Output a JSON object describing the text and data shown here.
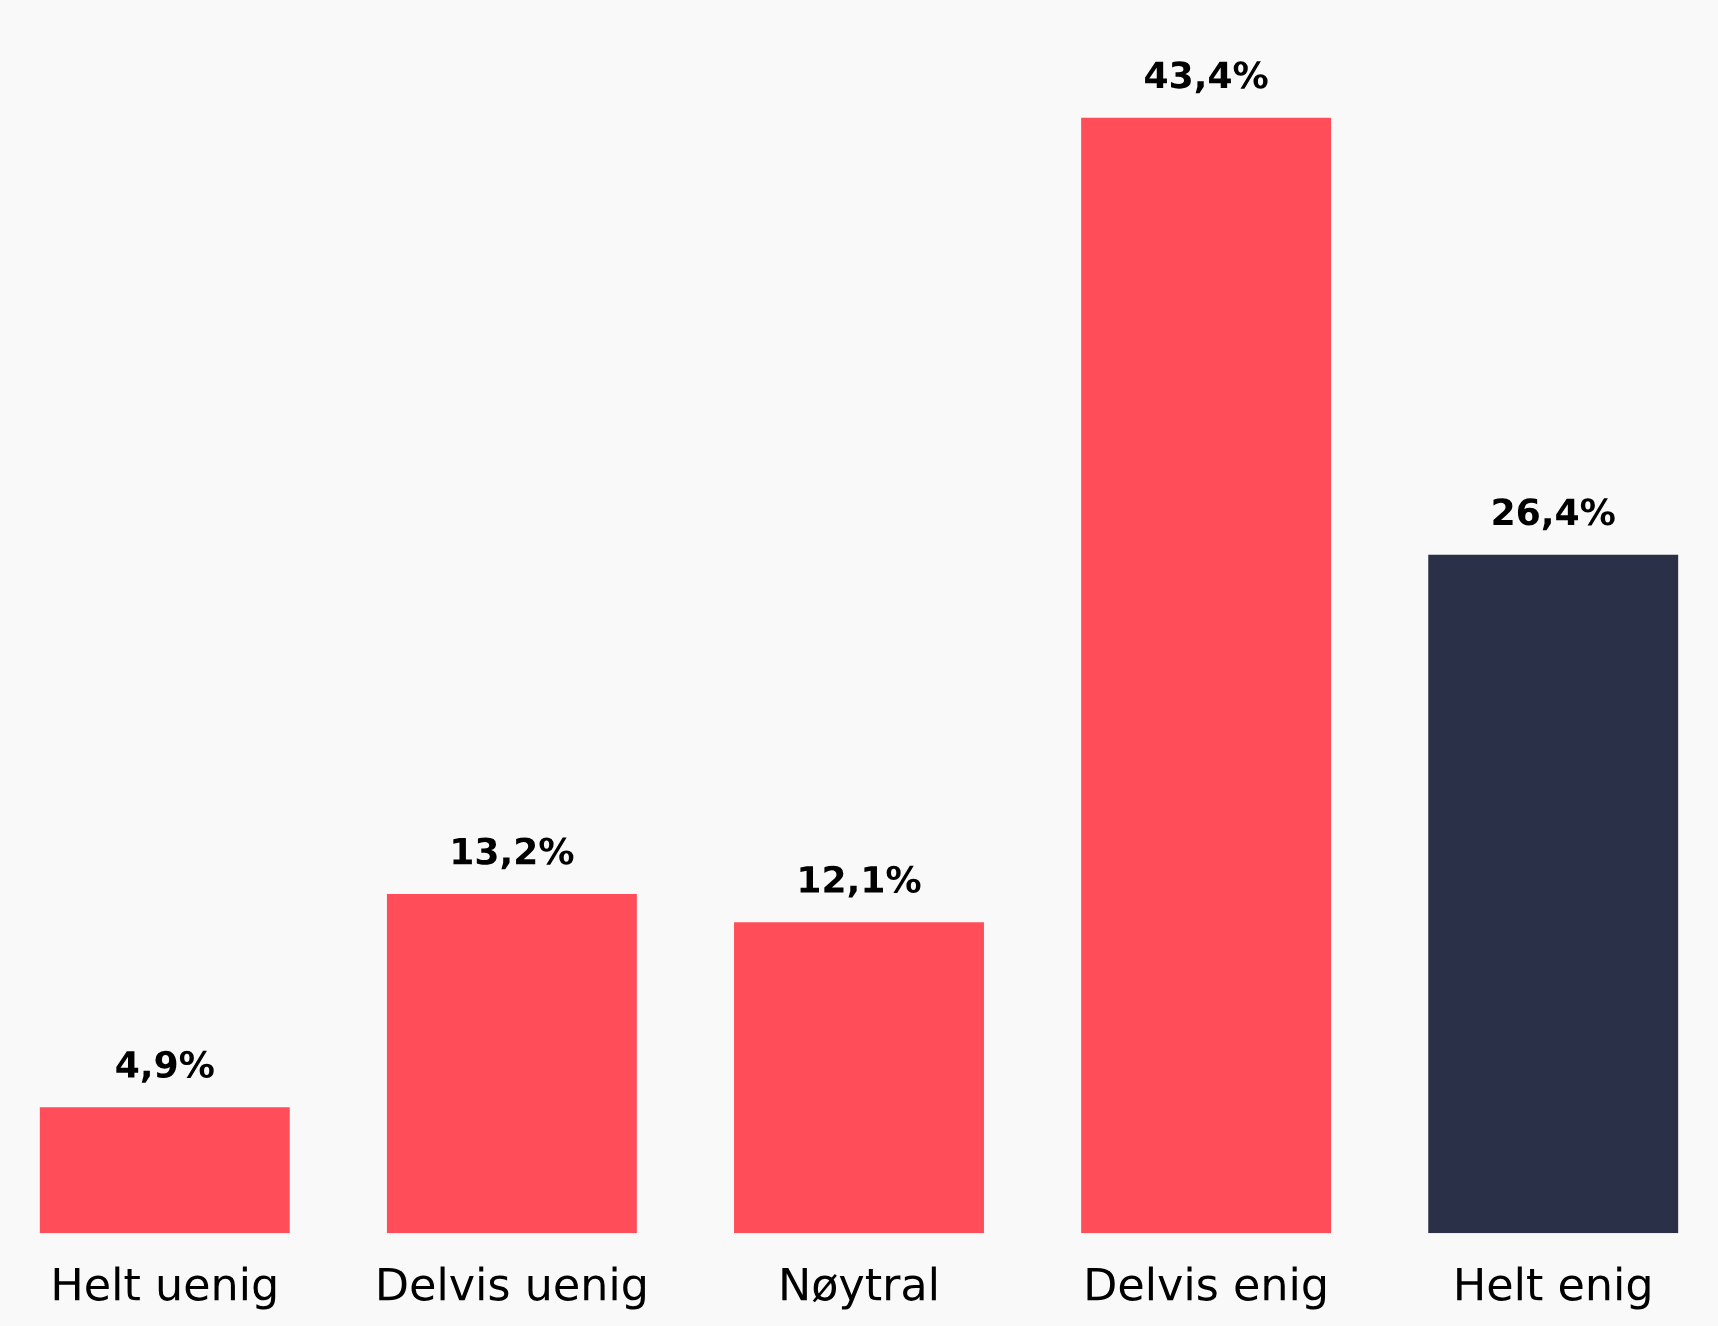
{
  "chart_data": {
    "type": "bar",
    "categories": [
      "Helt uenig",
      "Delvis uenig",
      "Nøytral",
      "Delvis enig",
      "Helt enig"
    ],
    "values": [
      4.9,
      13.2,
      12.1,
      43.4,
      26.4
    ],
    "colors": [
      "#ff4d5a",
      "#ff4d5a",
      "#ff4d5a",
      "#ff4d5a",
      "#2b3049"
    ],
    "value_labels": [
      "4,9%",
      "13,2%",
      "12,1%",
      "43,4%",
      "26,4%"
    ],
    "grid": false,
    "legend": false
  }
}
